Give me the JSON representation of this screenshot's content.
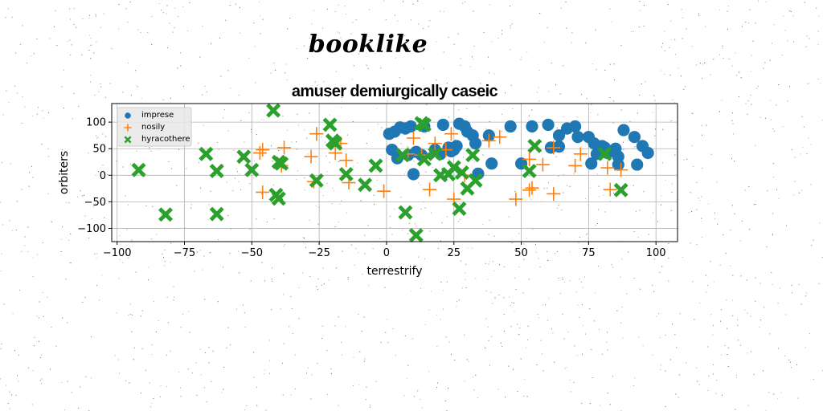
{
  "logo_text": "booklike",
  "chart_data": {
    "type": "scatter",
    "title": "amuser demiurgically caseic",
    "xlabel": "terrestrify",
    "ylabel": "orbiters",
    "xlim": [
      -102,
      108
    ],
    "ylim": [
      -125,
      135
    ],
    "xticks": [
      -100,
      -75,
      -50,
      -25,
      0,
      25,
      50,
      75,
      100
    ],
    "yticks": [
      -100,
      -50,
      0,
      50,
      100
    ],
    "xtick_labels": [
      "−100",
      "−75",
      "−50",
      "−25",
      "0",
      "25",
      "50",
      "75",
      "100"
    ],
    "ytick_labels": [
      "−100",
      "−50",
      "0",
      "50",
      "100"
    ],
    "grid": true,
    "legend_position": "upper-left",
    "series": [
      {
        "name": "imprese",
        "marker": "circle",
        "color": "#1f77b4",
        "points": [
          [
            1,
            78
          ],
          [
            3,
            82
          ],
          [
            5,
            90
          ],
          [
            7,
            88
          ],
          [
            9,
            92
          ],
          [
            2,
            48
          ],
          [
            4,
            32
          ],
          [
            8,
            38
          ],
          [
            10,
            2
          ],
          [
            11,
            44
          ],
          [
            13,
            38
          ],
          [
            14,
            92
          ],
          [
            18,
            48
          ],
          [
            20,
            40
          ],
          [
            21,
            95
          ],
          [
            23,
            52
          ],
          [
            24,
            45
          ],
          [
            25,
            48
          ],
          [
            26,
            55
          ],
          [
            27,
            97
          ],
          [
            29,
            92
          ],
          [
            30,
            82
          ],
          [
            32,
            75
          ],
          [
            33,
            60
          ],
          [
            34,
            3
          ],
          [
            38,
            75
          ],
          [
            39,
            22
          ],
          [
            46,
            92
          ],
          [
            50,
            22
          ],
          [
            54,
            92
          ],
          [
            60,
            95
          ],
          [
            61,
            52
          ],
          [
            64,
            54
          ],
          [
            64,
            75
          ],
          [
            67,
            88
          ],
          [
            70,
            92
          ],
          [
            71,
            72
          ],
          [
            75,
            72
          ],
          [
            76,
            22
          ],
          [
            77,
            60
          ],
          [
            78,
            40
          ],
          [
            80,
            55
          ],
          [
            81,
            52
          ],
          [
            82,
            42
          ],
          [
            85,
            50
          ],
          [
            86,
            20
          ],
          [
            86,
            35
          ],
          [
            88,
            85
          ],
          [
            92,
            72
          ],
          [
            93,
            20
          ],
          [
            95,
            55
          ],
          [
            97,
            42
          ]
        ]
      },
      {
        "name": "nosily",
        "marker": "plus",
        "color": "#ff7f0e",
        "points": [
          [
            -47,
            42
          ],
          [
            -46,
            48
          ],
          [
            -46,
            -32
          ],
          [
            -39,
            18
          ],
          [
            -38,
            52
          ],
          [
            -28,
            35
          ],
          [
            -27,
            -12
          ],
          [
            -26,
            78
          ],
          [
            -19,
            42
          ],
          [
            -17,
            60
          ],
          [
            -15,
            28
          ],
          [
            -14,
            -14
          ],
          [
            -1,
            -30
          ],
          [
            8,
            40
          ],
          [
            10,
            70
          ],
          [
            13,
            38
          ],
          [
            16,
            -27
          ],
          [
            18,
            60
          ],
          [
            22,
            48
          ],
          [
            24,
            78
          ],
          [
            25,
            -45
          ],
          [
            29,
            0
          ],
          [
            38,
            65
          ],
          [
            42,
            72
          ],
          [
            48,
            -45
          ],
          [
            53,
            -28
          ],
          [
            53,
            30
          ],
          [
            54,
            -24
          ],
          [
            58,
            20
          ],
          [
            62,
            52
          ],
          [
            62,
            -35
          ],
          [
            70,
            18
          ],
          [
            72,
            40
          ],
          [
            82,
            14
          ],
          [
            83,
            -27
          ],
          [
            87,
            10
          ]
        ]
      },
      {
        "name": "hyracothere",
        "marker": "x",
        "color": "#2ca02c",
        "points": [
          [
            -92,
            10
          ],
          [
            -82,
            -74
          ],
          [
            -67,
            40
          ],
          [
            -63,
            8
          ],
          [
            -63,
            -73
          ],
          [
            -53,
            35
          ],
          [
            -50,
            10
          ],
          [
            -42,
            122
          ],
          [
            -41,
            -37
          ],
          [
            -40,
            25
          ],
          [
            -40,
            -44
          ],
          [
            -39,
            22
          ],
          [
            -26,
            -10
          ],
          [
            -21,
            95
          ],
          [
            -20,
            65
          ],
          [
            -19,
            60
          ],
          [
            -15,
            2
          ],
          [
            -8,
            -18
          ],
          [
            -4,
            18
          ],
          [
            6,
            38
          ],
          [
            7,
            -70
          ],
          [
            11,
            -113
          ],
          [
            13,
            98
          ],
          [
            14,
            95
          ],
          [
            14,
            30
          ],
          [
            18,
            40
          ],
          [
            20,
            0
          ],
          [
            23,
            2
          ],
          [
            25,
            15
          ],
          [
            27,
            -63
          ],
          [
            28,
            5
          ],
          [
            30,
            -25
          ],
          [
            32,
            38
          ],
          [
            33,
            -10
          ],
          [
            53,
            8
          ],
          [
            55,
            55
          ],
          [
            81,
            40
          ],
          [
            87,
            -28
          ]
        ]
      }
    ]
  }
}
